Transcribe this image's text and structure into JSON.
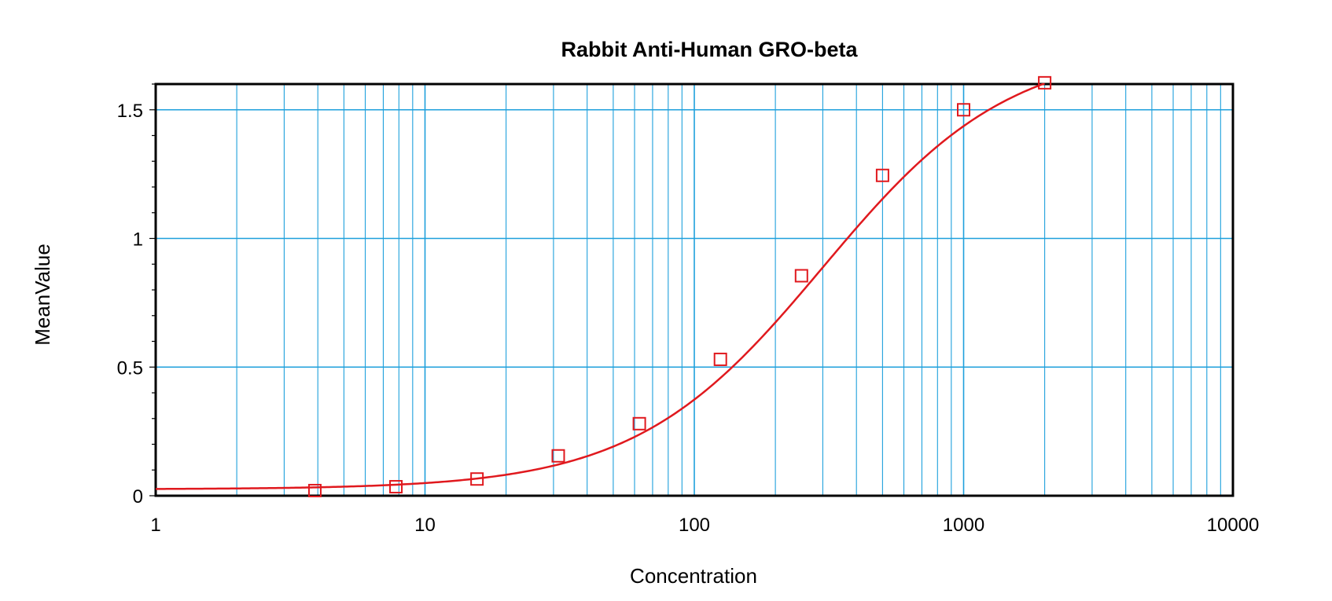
{
  "chart_data": {
    "type": "scatter",
    "title": "Rabbit Anti-Human GRO-beta",
    "xlabel": "Concentration",
    "ylabel": "MeanValue",
    "x_scale": "log",
    "xlim": [
      1,
      10000
    ],
    "ylim": [
      0,
      1.6
    ],
    "x_ticks": [
      1,
      10,
      100,
      1000,
      10000
    ],
    "x_tick_labels": [
      "1",
      "10",
      "100",
      "1000",
      "10000"
    ],
    "y_ticks": [
      0,
      0.5,
      1,
      1.5
    ],
    "y_tick_labels": [
      "0",
      "0.5",
      "1",
      "1.5"
    ],
    "grid": true,
    "legend": "none",
    "colors": {
      "grid": "#1ea0dc",
      "series": "#e0191e",
      "frame": "#000000"
    },
    "series": [
      {
        "marker": "square",
        "x": [
          3.9,
          7.8,
          15.6,
          31.25,
          62.5,
          125,
          250,
          500,
          1000,
          2000
        ],
        "y": [
          0.02,
          0.035,
          0.065,
          0.155,
          0.28,
          0.53,
          0.855,
          1.245,
          1.5,
          1.605
        ]
      }
    ],
    "fit_curve": {
      "model": "4PL",
      "bottom": 0.025,
      "top": 1.75,
      "ec50": 300,
      "hill": 1.25
    }
  }
}
